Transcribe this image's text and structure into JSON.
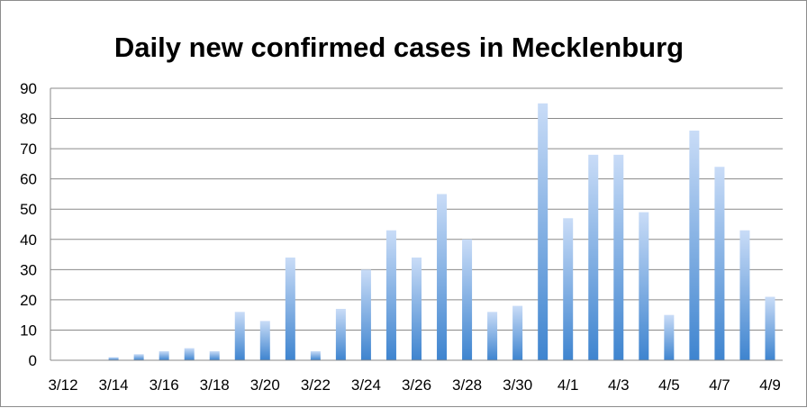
{
  "chart_data": {
    "type": "bar",
    "title": "Daily new confirmed cases in Mecklenburg",
    "xlabel": "",
    "ylabel": "",
    "ylim": [
      0,
      90
    ],
    "yticks": [
      0,
      10,
      20,
      30,
      40,
      50,
      60,
      70,
      80,
      90
    ],
    "grid": true,
    "legend": "none",
    "categories": [
      "3/12",
      "3/13",
      "3/14",
      "3/15",
      "3/16",
      "3/17",
      "3/18",
      "3/19",
      "3/20",
      "3/21",
      "3/22",
      "3/23",
      "3/24",
      "3/25",
      "3/26",
      "3/27",
      "3/28",
      "3/29",
      "3/30",
      "3/31",
      "4/1",
      "4/2",
      "4/3",
      "4/4",
      "4/5",
      "4/6",
      "4/7",
      "4/8",
      "4/9"
    ],
    "tick_labels": [
      "3/12",
      "3/14",
      "3/16",
      "3/18",
      "3/20",
      "3/22",
      "3/24",
      "3/26",
      "3/28",
      "3/30",
      "4/1",
      "4/3",
      "4/5",
      "4/7",
      "4/9"
    ],
    "values": [
      0,
      0,
      1,
      2,
      3,
      4,
      3,
      16,
      13,
      34,
      3,
      17,
      30,
      43,
      34,
      55,
      40,
      16,
      18,
      85,
      47,
      68,
      68,
      49,
      15,
      76,
      64,
      43,
      21
    ],
    "colors": {
      "bar_top": "#c9dcf7",
      "bar_bottom": "#3e84cf",
      "grid": "#8a8a8a",
      "axis": "#8a8a8a"
    }
  }
}
